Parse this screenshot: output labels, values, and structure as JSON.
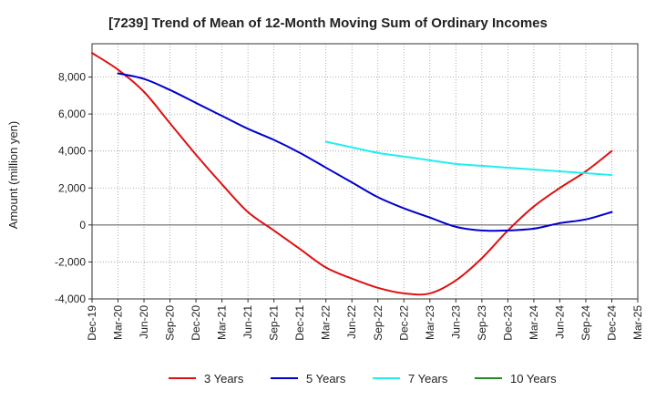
{
  "chart_data": {
    "type": "line",
    "title": "[7239]  Trend of Mean of 12-Month Moving Sum of Ordinary Incomes",
    "xlabel": "",
    "ylabel": "Amount (million yen)",
    "ylim": [
      -4000,
      9800
    ],
    "yticks": [
      -4000,
      -2000,
      0,
      2000,
      4000,
      6000,
      8000
    ],
    "ytick_labels": [
      "-4,000",
      "-2,000",
      "0",
      "2,000",
      "4,000",
      "6,000",
      "8,000"
    ],
    "categories": [
      "Dec-19",
      "Mar-20",
      "Jun-20",
      "Sep-20",
      "Dec-20",
      "Mar-21",
      "Jun-21",
      "Sep-21",
      "Dec-21",
      "Mar-22",
      "Jun-22",
      "Sep-22",
      "Dec-22",
      "Mar-23",
      "Jun-23",
      "Sep-23",
      "Dec-23",
      "Mar-24",
      "Jun-24",
      "Sep-24",
      "Dec-24",
      "Mar-25"
    ],
    "grid": true,
    "legend_position": "bottom",
    "series": [
      {
        "name": "3 Years",
        "color": "#dd1111",
        "values": [
          9300,
          8400,
          7200,
          5500,
          3800,
          2200,
          700,
          -300,
          -1300,
          -2300,
          -2900,
          -3400,
          -3700,
          -3700,
          -3000,
          -1800,
          -300,
          1000,
          2000,
          2900,
          4000,
          null
        ]
      },
      {
        "name": "5 Years",
        "color": "#0000cc",
        "values": [
          null,
          8200,
          7900,
          7300,
          6600,
          5900,
          5200,
          4600,
          3900,
          3100,
          2300,
          1500,
          900,
          400,
          -100,
          -300,
          -300,
          -200,
          100,
          300,
          700,
          null
        ]
      },
      {
        "name": "7 Years",
        "color": "#22eeee",
        "values": [
          null,
          null,
          null,
          null,
          null,
          null,
          null,
          null,
          null,
          4500,
          4200,
          3900,
          3700,
          3500,
          3300,
          3200,
          3100,
          3000,
          2900,
          2800,
          2700,
          null
        ]
      },
      {
        "name": "10 Years",
        "color": "#228822",
        "values": [
          null,
          null,
          null,
          null,
          null,
          null,
          null,
          null,
          null,
          null,
          null,
          null,
          null,
          null,
          null,
          null,
          null,
          null,
          null,
          null,
          null,
          null
        ]
      }
    ]
  }
}
